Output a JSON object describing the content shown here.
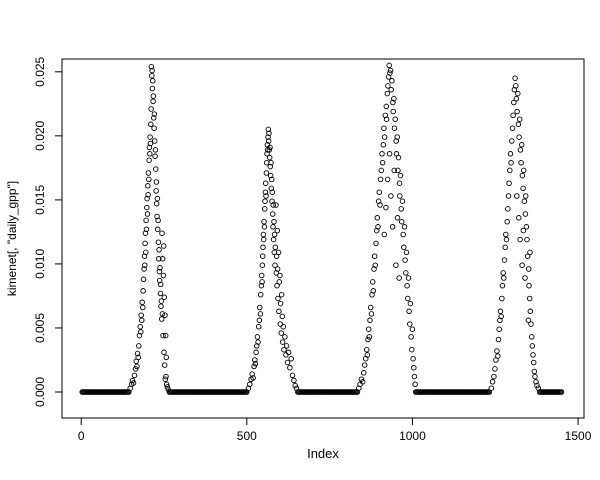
{
  "figure": {
    "background": "#ffffff",
    "marker_color": "#000000",
    "marker_style": "open-circle"
  },
  "chart_data": {
    "type": "scatter",
    "title": "",
    "xlabel": "Index",
    "ylabel": "kimenet[, \"daily_gpp\"]",
    "grid": false,
    "legend": null,
    "xlim": [
      -58,
      1518
    ],
    "ylim": [
      -0.00203,
      0.026
    ],
    "x_ticks": [
      0,
      500,
      1000,
      1500
    ],
    "x_tick_labels": [
      "0",
      "500",
      "1000",
      "1500"
    ],
    "y_ticks": [
      0,
      0.005,
      0.01,
      0.015,
      0.02,
      0.025
    ],
    "y_tick_labels": [
      "0.000",
      "0.005",
      "0.010",
      "0.015",
      "0.020",
      "0.025"
    ],
    "baseline_value": 0,
    "baseline_segments": [
      [
        3,
        144,
        3
      ],
      [
        266,
        500,
        3
      ],
      [
        654,
        834,
        3
      ],
      [
        1010,
        1234,
        3
      ],
      [
        1384,
        1452,
        3
      ]
    ],
    "points": [
      [
        148,
        0.0003
      ],
      [
        152,
        0.0006
      ],
      [
        155,
        0.0009
      ],
      [
        158,
        0.0007
      ],
      [
        161,
        0.0013
      ],
      [
        164,
        0.0018
      ],
      [
        166,
        0.0024
      ],
      [
        168,
        0.002
      ],
      [
        170,
        0.003
      ],
      [
        172,
        0.0027
      ],
      [
        174,
        0.0036
      ],
      [
        176,
        0.0044
      ],
      [
        178,
        0.0051
      ],
      [
        180,
        0.0047
      ],
      [
        181,
        0.006
      ],
      [
        183,
        0.0056
      ],
      [
        184,
        0.007
      ],
      [
        186,
        0.0066
      ],
      [
        187,
        0.0079
      ],
      [
        188,
        0.0088
      ],
      [
        190,
        0.0096
      ],
      [
        191,
        0.0106
      ],
      [
        192,
        0.0099
      ],
      [
        193,
        0.0116
      ],
      [
        194,
        0.0124
      ],
      [
        195,
        0.0109
      ],
      [
        196,
        0.0134
      ],
      [
        197,
        0.0127
      ],
      [
        198,
        0.0144
      ],
      [
        199,
        0.0151
      ],
      [
        200,
        0.0139
      ],
      [
        201,
        0.0161
      ],
      [
        202,
        0.0154
      ],
      [
        203,
        0.0171
      ],
      [
        204,
        0.0166
      ],
      [
        205,
        0.0181
      ],
      [
        206,
        0.0191
      ],
      [
        207,
        0.0186
      ],
      [
        208,
        0.0199
      ],
      [
        209,
        0.0194
      ],
      [
        210,
        0.0209
      ],
      [
        211,
        0.0221
      ],
      [
        212,
        0.0254
      ],
      [
        213,
        0.0247
      ],
      [
        214,
        0.0251
      ],
      [
        215,
        0.0237
      ],
      [
        216,
        0.0243
      ],
      [
        217,
        0.0227
      ],
      [
        218,
        0.0231
      ],
      [
        219,
        0.0214
      ],
      [
        220,
        0.0206
      ],
      [
        221,
        0.0217
      ],
      [
        222,
        0.0196
      ],
      [
        223,
        0.0184
      ],
      [
        224,
        0.0189
      ],
      [
        225,
        0.0174
      ],
      [
        226,
        0.0157
      ],
      [
        227,
        0.0164
      ],
      [
        228,
        0.0147
      ],
      [
        229,
        0.0137
      ],
      [
        230,
        0.0151
      ],
      [
        231,
        0.0127
      ],
      [
        232,
        0.0134
      ],
      [
        233,
        0.0117
      ],
      [
        234,
        0.0104
      ],
      [
        235,
        0.0111
      ],
      [
        236,
        0.0094
      ],
      [
        237,
        0.0087
      ],
      [
        238,
        0.0097
      ],
      [
        239,
        0.0077
      ],
      [
        240,
        0.0084
      ],
      [
        241,
        0.0067
      ],
      [
        242,
        0.0071
      ],
      [
        243,
        0.0057
      ],
      [
        244,
        0.0124
      ],
      [
        245,
        0.0061
      ],
      [
        246,
        0.0104
      ],
      [
        247,
        0.0044
      ],
      [
        248,
        0.0091
      ],
      [
        249,
        0.0114
      ],
      [
        250,
        0.0031
      ],
      [
        251,
        0.0074
      ],
      [
        252,
        0.0021
      ],
      [
        253,
        0.006
      ],
      [
        254,
        0.001
      ],
      [
        255,
        0.0044
      ],
      [
        256,
        0.0012
      ],
      [
        257,
        0.0027
      ],
      [
        258,
        0.0006
      ],
      [
        260,
        0.0004
      ],
      [
        263,
        0.0002
      ],
      [
        505,
        0.0003
      ],
      [
        509,
        0.0006
      ],
      [
        513,
        0.001
      ],
      [
        516,
        0.0014
      ],
      [
        519,
        0.0011
      ],
      [
        522,
        0.002
      ],
      [
        524,
        0.0025
      ],
      [
        526,
        0.0022
      ],
      [
        528,
        0.0031
      ],
      [
        530,
        0.0036
      ],
      [
        532,
        0.0043
      ],
      [
        534,
        0.0039
      ],
      [
        536,
        0.0051
      ],
      [
        538,
        0.0056
      ],
      [
        539,
        0.0066
      ],
      [
        541,
        0.0061
      ],
      [
        542,
        0.0076
      ],
      [
        544,
        0.0083
      ],
      [
        545,
        0.0091
      ],
      [
        546,
        0.0086
      ],
      [
        547,
        0.0099
      ],
      [
        548,
        0.0106
      ],
      [
        549,
        0.0113
      ],
      [
        550,
        0.0123
      ],
      [
        551,
        0.0119
      ],
      [
        552,
        0.0133
      ],
      [
        553,
        0.0129
      ],
      [
        554,
        0.0143
      ],
      [
        555,
        0.0149
      ],
      [
        556,
        0.0156
      ],
      [
        557,
        0.0163
      ],
      [
        558,
        0.0153
      ],
      [
        559,
        0.0171
      ],
      [
        560,
        0.0179
      ],
      [
        561,
        0.0186
      ],
      [
        562,
        0.0193
      ],
      [
        563,
        0.0189
      ],
      [
        564,
        0.0199
      ],
      [
        565,
        0.0205
      ],
      [
        566,
        0.0196
      ],
      [
        567,
        0.0202
      ],
      [
        568,
        0.0189
      ],
      [
        569,
        0.0183
      ],
      [
        570,
        0.0191
      ],
      [
        571,
        0.0176
      ],
      [
        572,
        0.0169
      ],
      [
        573,
        0.0179
      ],
      [
        574,
        0.0159
      ],
      [
        575,
        0.0166
      ],
      [
        576,
        0.0149
      ],
      [
        577,
        0.0156
      ],
      [
        578,
        0.0139
      ],
      [
        579,
        0.0129
      ],
      [
        580,
        0.0146
      ],
      [
        581,
        0.0119
      ],
      [
        582,
        0.0133
      ],
      [
        583,
        0.0109
      ],
      [
        584,
        0.0123
      ],
      [
        585,
        0.0099
      ],
      [
        586,
        0.0113
      ],
      [
        588,
        0.0146
      ],
      [
        589,
        0.0093
      ],
      [
        590,
        0.0106
      ],
      [
        591,
        0.0083
      ],
      [
        592,
        0.0126
      ],
      [
        593,
        0.0096
      ],
      [
        594,
        0.0073
      ],
      [
        596,
        0.0109
      ],
      [
        597,
        0.0063
      ],
      [
        598,
        0.0086
      ],
      [
        600,
        0.0091
      ],
      [
        601,
        0.0053
      ],
      [
        602,
        0.0069
      ],
      [
        604,
        0.0046
      ],
      [
        605,
        0.0076
      ],
      [
        607,
        0.0059
      ],
      [
        608,
        0.0039
      ],
      [
        610,
        0.0051
      ],
      [
        612,
        0.0033
      ],
      [
        615,
        0.0043
      ],
      [
        618,
        0.0029
      ],
      [
        620,
        0.0036
      ],
      [
        623,
        0.0023
      ],
      [
        626,
        0.0031
      ],
      [
        630,
        0.0019
      ],
      [
        634,
        0.0026
      ],
      [
        638,
        0.0013
      ],
      [
        642,
        0.0009
      ],
      [
        646,
        0.0005
      ],
      [
        650,
        0.0003
      ],
      [
        838,
        0.0003
      ],
      [
        842,
        0.0006
      ],
      [
        846,
        0.001
      ],
      [
        850,
        0.0008
      ],
      [
        853,
        0.0015
      ],
      [
        856,
        0.0021
      ],
      [
        859,
        0.0026
      ],
      [
        862,
        0.0033
      ],
      [
        864,
        0.0029
      ],
      [
        866,
        0.0041
      ],
      [
        868,
        0.0049
      ],
      [
        870,
        0.0043
      ],
      [
        872,
        0.0056
      ],
      [
        874,
        0.0066
      ],
      [
        876,
        0.0061
      ],
      [
        878,
        0.0076
      ],
      [
        880,
        0.0086
      ],
      [
        882,
        0.0079
      ],
      [
        884,
        0.0096
      ],
      [
        886,
        0.0106
      ],
      [
        888,
        0.0099
      ],
      [
        890,
        0.0116
      ],
      [
        892,
        0.0126
      ],
      [
        894,
        0.0136
      ],
      [
        896,
        0.0129
      ],
      [
        898,
        0.0149
      ],
      [
        900,
        0.0156
      ],
      [
        902,
        0.0146
      ],
      [
        904,
        0.0166
      ],
      [
        906,
        0.0173
      ],
      [
        908,
        0.0186
      ],
      [
        910,
        0.0179
      ],
      [
        912,
        0.0193
      ],
      [
        914,
        0.0206
      ],
      [
        915,
        0.0123
      ],
      [
        916,
        0.0199
      ],
      [
        918,
        0.0216
      ],
      [
        920,
        0.0144
      ],
      [
        921,
        0.0223
      ],
      [
        922,
        0.0213
      ],
      [
        924,
        0.0233
      ],
      [
        925,
        0.0166
      ],
      [
        926,
        0.0239
      ],
      [
        928,
        0.0246
      ],
      [
        930,
        0.0255
      ],
      [
        931,
        0.0186
      ],
      [
        932,
        0.0249
      ],
      [
        934,
        0.0251
      ],
      [
        935,
        0.0153
      ],
      [
        936,
        0.0236
      ],
      [
        938,
        0.0243
      ],
      [
        940,
        0.0129
      ],
      [
        941,
        0.0226
      ],
      [
        942,
        0.0219
      ],
      [
        944,
        0.0229
      ],
      [
        945,
        0.0173
      ],
      [
        946,
        0.0206
      ],
      [
        948,
        0.0213
      ],
      [
        950,
        0.0099
      ],
      [
        951,
        0.0196
      ],
      [
        952,
        0.0186
      ],
      [
        954,
        0.0199
      ],
      [
        955,
        0.0136
      ],
      [
        956,
        0.0173
      ],
      [
        958,
        0.0183
      ],
      [
        960,
        0.0089
      ],
      [
        961,
        0.0163
      ],
      [
        962,
        0.0153
      ],
      [
        964,
        0.0169
      ],
      [
        966,
        0.0143
      ],
      [
        968,
        0.0133
      ],
      [
        970,
        0.0149
      ],
      [
        972,
        0.0123
      ],
      [
        974,
        0.0113
      ],
      [
        976,
        0.0129
      ],
      [
        978,
        0.0103
      ],
      [
        980,
        0.0093
      ],
      [
        982,
        0.0109
      ],
      [
        984,
        0.0083
      ],
      [
        986,
        0.0073
      ],
      [
        988,
        0.0089
      ],
      [
        990,
        0.0063
      ],
      [
        992,
        0.0053
      ],
      [
        994,
        0.0069
      ],
      [
        996,
        0.0043
      ],
      [
        998,
        0.0033
      ],
      [
        1000,
        0.0049
      ],
      [
        1002,
        0.0026
      ],
      [
        1004,
        0.0019
      ],
      [
        1006,
        0.0012
      ],
      [
        1008,
        0.0006
      ],
      [
        1238,
        0.0003
      ],
      [
        1242,
        0.0008
      ],
      [
        1246,
        0.0012
      ],
      [
        1249,
        0.0018
      ],
      [
        1252,
        0.0025
      ],
      [
        1255,
        0.0032
      ],
      [
        1258,
        0.0028
      ],
      [
        1260,
        0.0041
      ],
      [
        1262,
        0.0049
      ],
      [
        1264,
        0.0056
      ],
      [
        1266,
        0.0063
      ],
      [
        1268,
        0.0059
      ],
      [
        1270,
        0.0073
      ],
      [
        1272,
        0.0083
      ],
      [
        1274,
        0.0093
      ],
      [
        1276,
        0.0089
      ],
      [
        1278,
        0.0103
      ],
      [
        1280,
        0.0113
      ],
      [
        1282,
        0.0123
      ],
      [
        1284,
        0.0119
      ],
      [
        1286,
        0.0133
      ],
      [
        1288,
        0.0143
      ],
      [
        1290,
        0.0153
      ],
      [
        1292,
        0.0163
      ],
      [
        1294,
        0.0173
      ],
      [
        1296,
        0.0186
      ],
      [
        1298,
        0.0179
      ],
      [
        1300,
        0.0196
      ],
      [
        1302,
        0.0206
      ],
      [
        1304,
        0.0216
      ],
      [
        1306,
        0.0226
      ],
      [
        1308,
        0.0236
      ],
      [
        1310,
        0.0245
      ],
      [
        1312,
        0.0239
      ],
      [
        1314,
        0.0229
      ],
      [
        1315,
        0.0153
      ],
      [
        1316,
        0.0219
      ],
      [
        1318,
        0.0233
      ],
      [
        1320,
        0.0209
      ],
      [
        1321,
        0.0136
      ],
      [
        1322,
        0.0199
      ],
      [
        1324,
        0.0213
      ],
      [
        1325,
        0.0119
      ],
      [
        1326,
        0.0189
      ],
      [
        1328,
        0.0179
      ],
      [
        1330,
        0.0193
      ],
      [
        1331,
        0.0099
      ],
      [
        1332,
        0.0169
      ],
      [
        1334,
        0.0159
      ],
      [
        1335,
        0.0126
      ],
      [
        1336,
        0.0173
      ],
      [
        1338,
        0.0149
      ],
      [
        1340,
        0.0089
      ],
      [
        1341,
        0.0139
      ],
      [
        1342,
        0.0153
      ],
      [
        1344,
        0.0129
      ],
      [
        1346,
        0.0119
      ],
      [
        1348,
        0.0106
      ],
      [
        1350,
        0.0056
      ],
      [
        1351,
        0.0096
      ],
      [
        1352,
        0.0083
      ],
      [
        1354,
        0.0073
      ],
      [
        1355,
        0.0109
      ],
      [
        1356,
        0.0063
      ],
      [
        1358,
        0.0053
      ],
      [
        1360,
        0.0043
      ],
      [
        1362,
        0.0036
      ],
      [
        1364,
        0.0029
      ],
      [
        1366,
        0.0023
      ],
      [
        1368,
        0.0016
      ],
      [
        1370,
        0.0012
      ],
      [
        1373,
        0.0008
      ],
      [
        1376,
        0.0005
      ],
      [
        1380,
        0.0003
      ]
    ]
  }
}
